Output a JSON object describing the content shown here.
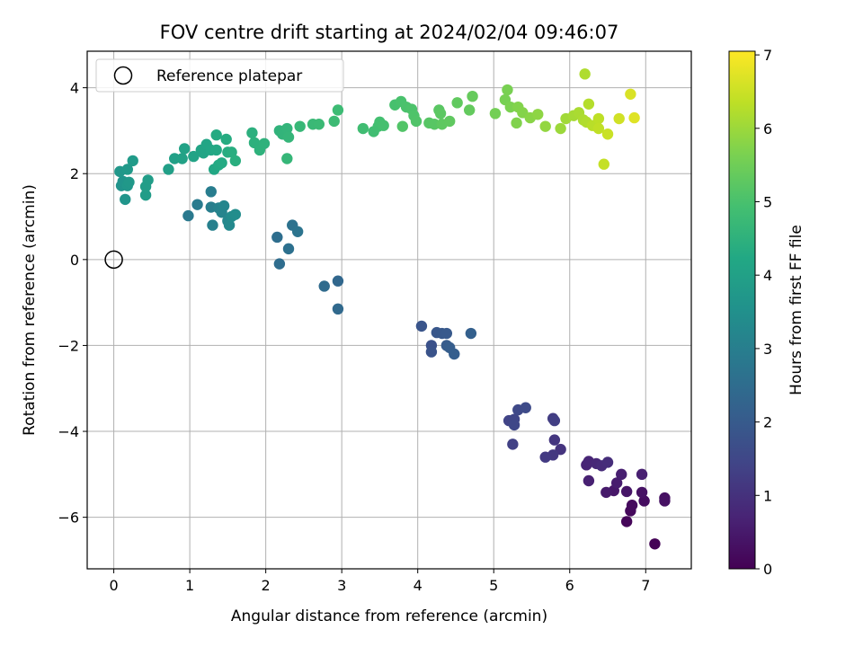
{
  "chart_data": {
    "type": "scatter",
    "title": "FOV centre drift starting at 2024/02/04 09:46:07",
    "xlabel": "Angular distance from reference (arcmin)",
    "ylabel": "Rotation from reference (arcmin)",
    "xlim": [
      -0.35,
      7.6
    ],
    "ylim": [
      -7.2,
      4.85
    ],
    "xticks": [
      0,
      1,
      2,
      3,
      4,
      5,
      6,
      7
    ],
    "yticks": [
      -6,
      -4,
      -2,
      0,
      2,
      4
    ],
    "xtick_labels": [
      "0",
      "1",
      "2",
      "3",
      "4",
      "5",
      "6",
      "7"
    ],
    "ytick_labels": [
      "−6",
      "−4",
      "−2",
      "0",
      "2",
      "4"
    ],
    "grid": true,
    "colormap": "viridis",
    "colorbar": {
      "label": "Hours from first FF file",
      "range": [
        0,
        7.05
      ],
      "ticks": [
        0,
        1,
        2,
        3,
        4,
        5,
        6,
        7
      ],
      "tick_labels": [
        "0",
        "1",
        "2",
        "3",
        "4",
        "5",
        "6",
        "7"
      ]
    },
    "legend": {
      "placement": "top-left",
      "entries": [
        {
          "label": "Reference platepar",
          "marker": "hollow-circle"
        }
      ]
    },
    "reference_point": {
      "x": 0,
      "y": 0
    },
    "points": [
      [
        7.12,
        -6.62,
        0.05
      ],
      [
        6.75,
        -6.1,
        0.1
      ],
      [
        6.8,
        -5.85,
        0.15
      ],
      [
        6.82,
        -5.72,
        0.2
      ],
      [
        6.98,
        -5.62,
        0.25
      ],
      [
        7.25,
        -5.55,
        0.3
      ],
      [
        7.25,
        -5.62,
        0.32
      ],
      [
        6.95,
        -5.42,
        0.35
      ],
      [
        6.75,
        -5.4,
        0.4
      ],
      [
        6.58,
        -5.38,
        0.45
      ],
      [
        6.48,
        -5.42,
        0.5
      ],
      [
        6.62,
        -5.2,
        0.55
      ],
      [
        6.68,
        -5.0,
        0.6
      ],
      [
        6.95,
        -5.0,
        0.62
      ],
      [
        6.25,
        -5.15,
        0.65
      ],
      [
        6.22,
        -4.78,
        0.7
      ],
      [
        6.25,
        -4.7,
        0.75
      ],
      [
        6.35,
        -4.75,
        0.8
      ],
      [
        6.42,
        -4.8,
        0.85
      ],
      [
        6.5,
        -4.72,
        0.9
      ],
      [
        5.88,
        -4.42,
        1.05
      ],
      [
        5.8,
        -4.2,
        1.1
      ],
      [
        5.78,
        -4.55,
        1.15
      ],
      [
        5.68,
        -4.6,
        1.2
      ],
      [
        5.78,
        -3.7,
        1.25
      ],
      [
        5.8,
        -3.75,
        1.3
      ],
      [
        5.25,
        -4.3,
        1.35
      ],
      [
        5.2,
        -3.75,
        1.4
      ],
      [
        5.27,
        -3.72,
        1.45
      ],
      [
        5.27,
        -3.85,
        1.5
      ],
      [
        5.32,
        -3.5,
        1.55
      ],
      [
        5.42,
        -3.45,
        1.6
      ],
      [
        4.18,
        -2.0,
        1.75
      ],
      [
        4.18,
        -2.15,
        1.8
      ],
      [
        4.05,
        -1.55,
        1.85
      ],
      [
        4.25,
        -1.7,
        1.9
      ],
      [
        4.32,
        -1.72,
        1.92
      ],
      [
        4.38,
        -1.72,
        1.95
      ],
      [
        4.38,
        -2.0,
        2.0
      ],
      [
        4.42,
        -2.05,
        2.05
      ],
      [
        4.48,
        -2.2,
        2.1
      ],
      [
        4.7,
        -1.72,
        2.15
      ],
      [
        2.95,
        -0.5,
        2.35
      ],
      [
        2.95,
        -1.15,
        2.4
      ],
      [
        2.77,
        -0.62,
        2.45
      ],
      [
        2.18,
        -0.1,
        2.5
      ],
      [
        2.15,
        0.52,
        2.55
      ],
      [
        2.3,
        0.25,
        2.6
      ],
      [
        2.35,
        0.8,
        2.65
      ],
      [
        2.42,
        0.65,
        2.7
      ],
      [
        0.98,
        1.02,
        2.85
      ],
      [
        1.1,
        1.28,
        2.9
      ],
      [
        1.28,
        1.58,
        2.95
      ],
      [
        1.28,
        1.22,
        3.0
      ],
      [
        1.3,
        0.8,
        3.05
      ],
      [
        1.38,
        1.2,
        3.1
      ],
      [
        1.42,
        1.1,
        3.15
      ],
      [
        1.45,
        1.25,
        3.2
      ],
      [
        1.5,
        0.9,
        3.25
      ],
      [
        1.52,
        0.8,
        3.3
      ],
      [
        1.55,
        1.0,
        3.35
      ],
      [
        1.6,
        1.05,
        3.4
      ],
      [
        0.1,
        1.72,
        3.6
      ],
      [
        0.12,
        1.82,
        3.62
      ],
      [
        0.15,
        1.4,
        3.65
      ],
      [
        0.18,
        1.72,
        3.7
      ],
      [
        0.08,
        2.05,
        3.72
      ],
      [
        0.2,
        1.8,
        3.75
      ],
      [
        0.18,
        2.1,
        3.78
      ],
      [
        0.25,
        2.3,
        3.82
      ],
      [
        0.42,
        1.5,
        3.85
      ],
      [
        0.42,
        1.7,
        3.88
      ],
      [
        0.45,
        1.85,
        3.9
      ],
      [
        0.72,
        2.1,
        3.95
      ],
      [
        0.8,
        2.35,
        4.0
      ],
      [
        0.9,
        2.35,
        4.02
      ],
      [
        0.93,
        2.58,
        4.05
      ],
      [
        1.05,
        2.4,
        4.08
      ],
      [
        1.15,
        2.55,
        4.1
      ],
      [
        1.18,
        2.48,
        4.12
      ],
      [
        1.22,
        2.68,
        4.15
      ],
      [
        1.28,
        2.55,
        4.18
      ],
      [
        1.32,
        2.1,
        4.2
      ],
      [
        1.35,
        2.55,
        4.22
      ],
      [
        1.38,
        2.2,
        4.25
      ],
      [
        1.42,
        2.25,
        4.28
      ],
      [
        1.35,
        2.9,
        4.3
      ],
      [
        1.48,
        2.8,
        4.32
      ],
      [
        1.5,
        2.5,
        4.35
      ],
      [
        1.55,
        2.5,
        4.38
      ],
      [
        1.6,
        2.3,
        4.4
      ],
      [
        1.82,
        2.95,
        4.45
      ],
      [
        1.85,
        2.72,
        4.48
      ],
      [
        1.92,
        2.55,
        4.5
      ],
      [
        1.98,
        2.7,
        4.52
      ],
      [
        2.18,
        3.0,
        4.55
      ],
      [
        2.22,
        2.92,
        4.58
      ],
      [
        2.28,
        3.05,
        4.6
      ],
      [
        2.3,
        2.85,
        4.62
      ],
      [
        2.28,
        2.35,
        4.65
      ],
      [
        2.45,
        3.1,
        4.68
      ],
      [
        2.62,
        3.15,
        4.72
      ],
      [
        2.7,
        3.15,
        4.75
      ],
      [
        2.9,
        3.22,
        4.78
      ],
      [
        2.95,
        3.48,
        4.8
      ],
      [
        3.28,
        3.05,
        4.85
      ],
      [
        3.42,
        2.98,
        4.88
      ],
      [
        3.48,
        3.1,
        4.9
      ],
      [
        3.5,
        3.2,
        4.92
      ],
      [
        3.55,
        3.12,
        4.95
      ],
      [
        3.7,
        3.6,
        4.98
      ],
      [
        3.78,
        3.68,
        5.0
      ],
      [
        3.85,
        3.55,
        5.02
      ],
      [
        3.92,
        3.5,
        5.05
      ],
      [
        3.95,
        3.35,
        5.08
      ],
      [
        3.98,
        3.22,
        5.1
      ],
      [
        3.8,
        3.1,
        5.12
      ],
      [
        4.15,
        3.18,
        5.18
      ],
      [
        4.22,
        3.15,
        5.2
      ],
      [
        4.28,
        3.48,
        5.22
      ],
      [
        4.3,
        3.4,
        5.25
      ],
      [
        4.32,
        3.15,
        5.28
      ],
      [
        4.42,
        3.22,
        5.3
      ],
      [
        4.52,
        3.65,
        5.32
      ],
      [
        4.68,
        3.48,
        5.35
      ],
      [
        4.72,
        3.8,
        5.38
      ],
      [
        5.02,
        3.4,
        5.55
      ],
      [
        5.15,
        3.72,
        5.6
      ],
      [
        5.18,
        3.95,
        5.62
      ],
      [
        5.22,
        3.55,
        5.65
      ],
      [
        5.3,
        3.18,
        5.7
      ],
      [
        5.32,
        3.55,
        5.72
      ],
      [
        5.38,
        3.42,
        5.75
      ],
      [
        5.48,
        3.3,
        5.8
      ],
      [
        5.58,
        3.38,
        5.85
      ],
      [
        5.68,
        3.1,
        5.9
      ],
      [
        5.88,
        3.05,
        6.0
      ],
      [
        5.95,
        3.28,
        6.05
      ],
      [
        6.05,
        3.35,
        6.1
      ],
      [
        6.12,
        3.42,
        6.15
      ],
      [
        6.18,
        3.25,
        6.18
      ],
      [
        6.2,
        4.32,
        6.2
      ],
      [
        6.22,
        3.2,
        6.22
      ],
      [
        6.25,
        3.62,
        6.25
      ],
      [
        6.3,
        3.12,
        6.3
      ],
      [
        6.38,
        3.28,
        6.35
      ],
      [
        6.38,
        3.05,
        6.38
      ],
      [
        6.45,
        2.22,
        6.42
      ],
      [
        6.5,
        2.92,
        6.48
      ],
      [
        6.65,
        3.28,
        6.55
      ],
      [
        6.8,
        3.85,
        6.65
      ],
      [
        6.85,
        3.3,
        6.72
      ]
    ]
  }
}
